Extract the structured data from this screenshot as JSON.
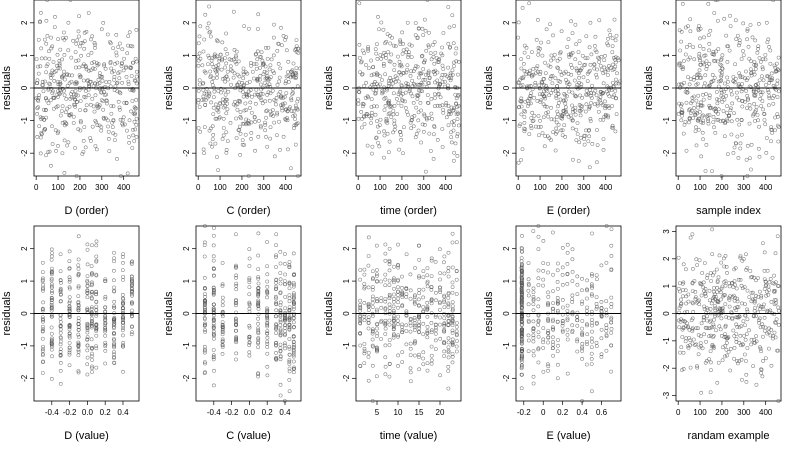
{
  "chart_data": [
    {
      "type": "scatter",
      "ylabel": "residuals",
      "xlabel": "D (order)",
      "xlim": [
        -10,
        470
      ],
      "ylim": [
        -2.7,
        2.7
      ],
      "xticks": [
        0,
        100,
        200,
        300,
        400
      ],
      "yticks": [
        -2,
        -1,
        0,
        1,
        2
      ],
      "refline": 0,
      "pattern": "order",
      "points": [
        [
          5,
          -1.5
        ],
        [
          20,
          -0.9
        ],
        [
          40,
          0.2
        ],
        [
          60,
          0.9
        ],
        [
          80,
          -0.3
        ],
        [
          100,
          1.5
        ],
        [
          120,
          -2.0
        ],
        [
          140,
          0.4
        ],
        [
          160,
          -0.8
        ],
        [
          180,
          1.1
        ],
        [
          200,
          0.0
        ],
        [
          220,
          -1.2
        ],
        [
          240,
          2.3
        ],
        [
          260,
          0.6
        ],
        [
          280,
          -0.5
        ],
        [
          300,
          1.8
        ],
        [
          320,
          -0.2
        ],
        [
          340,
          0.8
        ],
        [
          360,
          -1.6
        ],
        [
          380,
          0.3
        ],
        [
          400,
          -0.9
        ],
        [
          420,
          1.3
        ],
        [
          440,
          -0.4
        ],
        [
          460,
          0.5
        ]
      ]
    },
    {
      "type": "scatter",
      "ylabel": "residuals",
      "xlabel": "C (order)",
      "xlim": [
        -10,
        470
      ],
      "ylim": [
        -2.7,
        2.7
      ],
      "xticks": [
        0,
        100,
        200,
        300,
        400
      ],
      "yticks": [
        -2,
        -1,
        0,
        1,
        2
      ],
      "refline": 0,
      "pattern": "order",
      "points": [
        [
          10,
          0.9
        ],
        [
          30,
          -1.2
        ],
        [
          50,
          2.5
        ],
        [
          70,
          0.3
        ],
        [
          90,
          -0.6
        ],
        [
          110,
          1.4
        ],
        [
          130,
          -1.9
        ],
        [
          150,
          0.1
        ],
        [
          170,
          0.8
        ],
        [
          190,
          -0.4
        ],
        [
          210,
          1.9
        ],
        [
          230,
          -1.0
        ],
        [
          250,
          0.5
        ],
        [
          270,
          -0.2
        ],
        [
          290,
          1.1
        ],
        [
          310,
          -1.5
        ],
        [
          330,
          0.7
        ],
        [
          350,
          -2.1
        ],
        [
          370,
          0.2
        ],
        [
          390,
          1.6
        ],
        [
          410,
          -0.7
        ],
        [
          430,
          0.4
        ],
        [
          450,
          -1.1
        ],
        [
          465,
          0.6
        ]
      ]
    },
    {
      "type": "scatter",
      "ylabel": "residuals",
      "xlabel": "time (order)",
      "xlim": [
        -10,
        470
      ],
      "ylim": [
        -2.7,
        2.7
      ],
      "xticks": [
        0,
        100,
        200,
        300,
        400
      ],
      "yticks": [
        -2,
        -1,
        0,
        1,
        2
      ],
      "refline": 0,
      "pattern": "order",
      "points": [
        [
          5,
          2.6
        ],
        [
          25,
          -0.5
        ],
        [
          45,
          1.2
        ],
        [
          65,
          -1.8
        ],
        [
          85,
          0.4
        ],
        [
          105,
          0.9
        ],
        [
          125,
          -0.3
        ],
        [
          145,
          1.6
        ],
        [
          165,
          -1.1
        ],
        [
          185,
          0.2
        ],
        [
          205,
          -2.0
        ],
        [
          225,
          0.7
        ],
        [
          245,
          1.3
        ],
        [
          265,
          -0.6
        ],
        [
          285,
          0.1
        ],
        [
          305,
          2.1
        ],
        [
          325,
          -1.4
        ],
        [
          345,
          0.5
        ],
        [
          365,
          -0.2
        ],
        [
          385,
          1.0
        ],
        [
          405,
          -0.9
        ],
        [
          425,
          0.3
        ],
        [
          445,
          -1.7
        ],
        [
          460,
          0.8
        ]
      ]
    },
    {
      "type": "scatter",
      "ylabel": "residuals",
      "xlabel": "E (order)",
      "xlim": [
        -10,
        470
      ],
      "ylim": [
        -2.7,
        2.7
      ],
      "xticks": [
        0,
        100,
        200,
        300,
        400
      ],
      "yticks": [
        -2,
        -1,
        0,
        1,
        2
      ],
      "refline": 0,
      "pattern": "order",
      "points": [
        [
          10,
          -0.4
        ],
        [
          30,
          1.3
        ],
        [
          50,
          2.6
        ],
        [
          70,
          -1.0
        ],
        [
          90,
          0.5
        ],
        [
          110,
          -0.2
        ],
        [
          130,
          1.8
        ],
        [
          150,
          -1.6
        ],
        [
          170,
          0.3
        ],
        [
          190,
          0.9
        ],
        [
          210,
          -0.7
        ],
        [
          230,
          1.5
        ],
        [
          250,
          -2.2
        ],
        [
          270,
          0.1
        ],
        [
          290,
          0.6
        ],
        [
          310,
          -1.3
        ],
        [
          330,
          2.0
        ],
        [
          350,
          -0.5
        ],
        [
          370,
          0.8
        ],
        [
          390,
          -1.9
        ],
        [
          410,
          0.4
        ],
        [
          430,
          1.1
        ],
        [
          450,
          -0.8
        ],
        [
          465,
          0.2
        ]
      ]
    },
    {
      "type": "scatter",
      "ylabel": "residuals",
      "xlabel": "sample index",
      "xlim": [
        -10,
        470
      ],
      "ylim": [
        -2.7,
        2.7
      ],
      "xticks": [
        0,
        100,
        200,
        300,
        400
      ],
      "yticks": [
        -2,
        -1,
        0,
        1,
        2
      ],
      "refline": 0,
      "pattern": "order",
      "points": [
        [
          5,
          0.7
        ],
        [
          25,
          -1.4
        ],
        [
          45,
          1.9
        ],
        [
          65,
          -0.3
        ],
        [
          85,
          0.4
        ],
        [
          105,
          -2.1
        ],
        [
          125,
          1.0
        ],
        [
          145,
          -0.6
        ],
        [
          165,
          2.3
        ],
        [
          185,
          0.2
        ],
        [
          205,
          -1.0
        ],
        [
          225,
          0.8
        ],
        [
          245,
          -0.2
        ],
        [
          265,
          1.5
        ],
        [
          285,
          -1.7
        ],
        [
          305,
          0.3
        ],
        [
          325,
          0.9
        ],
        [
          345,
          -0.8
        ],
        [
          365,
          1.2
        ],
        [
          385,
          -0.4
        ],
        [
          405,
          2.0
        ],
        [
          425,
          -1.2
        ],
        [
          445,
          0.5
        ],
        [
          460,
          -0.1
        ]
      ]
    },
    {
      "type": "scatter",
      "ylabel": "residuals",
      "xlabel": "D (value)",
      "xlim": [
        -0.6,
        0.58
      ],
      "ylim": [
        -2.7,
        2.7
      ],
      "xticks": [
        -0.4,
        -0.2,
        0.0,
        0.2,
        0.4
      ],
      "yticks": [
        -2,
        -1,
        0,
        1,
        2
      ],
      "refline": 0,
      "pattern": "levels",
      "levels": [
        -0.5,
        -0.4,
        -0.3,
        -0.2,
        -0.1,
        0.0,
        0.05,
        0.1,
        0.2,
        0.3,
        0.4,
        0.5
      ],
      "points": [
        [
          -0.5,
          -1.5
        ],
        [
          -0.4,
          0.9
        ],
        [
          -0.3,
          -0.6
        ],
        [
          -0.2,
          1.4
        ],
        [
          -0.1,
          -1.0
        ],
        [
          0.0,
          0.5
        ],
        [
          0.05,
          -0.3
        ],
        [
          0.1,
          2.1
        ],
        [
          0.2,
          -0.9
        ],
        [
          0.3,
          0.7
        ],
        [
          0.4,
          -1.8
        ],
        [
          0.5,
          0.3
        ]
      ]
    },
    {
      "type": "scatter",
      "ylabel": "residuals",
      "xlabel": "C (value)",
      "xlim": [
        -0.6,
        0.58
      ],
      "ylim": [
        -2.7,
        2.7
      ],
      "xticks": [
        -0.4,
        -0.2,
        0.0,
        0.2,
        0.4
      ],
      "yticks": [
        -2,
        -1,
        0,
        1,
        2
      ],
      "refline": 0,
      "pattern": "levels",
      "levels": [
        -0.5,
        -0.4,
        -0.3,
        -0.15,
        0.0,
        0.1,
        0.2,
        0.3,
        0.35,
        0.4,
        0.45,
        0.5
      ],
      "points": [
        [
          -0.5,
          0.4
        ],
        [
          -0.4,
          2.4
        ],
        [
          -0.3,
          -0.8
        ],
        [
          -0.15,
          1.1
        ],
        [
          0.0,
          -1.3
        ],
        [
          0.1,
          0.6
        ],
        [
          0.2,
          -0.4
        ],
        [
          0.3,
          1.8
        ],
        [
          0.35,
          -2.2
        ],
        [
          0.4,
          0.9
        ],
        [
          0.45,
          -0.5
        ],
        [
          0.5,
          0.2
        ]
      ]
    },
    {
      "type": "scatter",
      "ylabel": "residuals",
      "xlabel": "time (value)",
      "xlim": [
        0,
        25
      ],
      "ylim": [
        -2.7,
        2.7
      ],
      "xticks": [
        5,
        10,
        15,
        20
      ],
      "yticks": [
        -2,
        -1,
        0,
        1,
        2
      ],
      "refline": 0,
      "pattern": "levels",
      "levels": [
        1,
        2,
        3,
        4,
        5,
        6,
        7,
        8,
        9,
        10,
        11,
        12,
        13,
        14,
        15,
        16,
        17,
        18,
        19,
        20,
        21,
        22,
        23,
        24
      ],
      "points": [
        [
          2,
          1.2
        ],
        [
          5,
          -0.7
        ],
        [
          8,
          2.0
        ],
        [
          11,
          -1.5
        ],
        [
          12,
          0.6
        ],
        [
          14,
          -0.2
        ],
        [
          17,
          1.4
        ],
        [
          19,
          -1.1
        ],
        [
          21,
          0.4
        ],
        [
          23,
          -0.6
        ],
        [
          24,
          2.2
        ]
      ]
    },
    {
      "type": "scatter",
      "ylabel": "residuals",
      "xlabel": "E (value)",
      "xlim": [
        -0.28,
        0.8
      ],
      "ylim": [
        -2.7,
        2.7
      ],
      "xticks": [
        -0.2,
        0.0,
        0.2,
        0.4,
        0.6
      ],
      "yticks": [
        -2,
        -1,
        0,
        1,
        2
      ],
      "refline": 0,
      "pattern": "levels-skew",
      "levels": [
        -0.22,
        -0.15,
        -0.1,
        -0.05,
        0.0,
        0.05,
        0.1,
        0.15,
        0.2,
        0.25,
        0.3,
        0.35,
        0.4,
        0.45,
        0.5,
        0.55,
        0.6,
        0.65,
        0.7
      ],
      "points": [
        [
          -0.22,
          1.5
        ],
        [
          -0.22,
          -1.6
        ],
        [
          -0.1,
          0.4
        ],
        [
          0.0,
          -0.8
        ],
        [
          0.1,
          2.5
        ],
        [
          0.2,
          -0.3
        ],
        [
          0.3,
          1.0
        ],
        [
          0.4,
          -1.4
        ],
        [
          0.5,
          0.6
        ],
        [
          0.6,
          -0.5
        ],
        [
          0.7,
          0.2
        ]
      ]
    },
    {
      "type": "scatter",
      "ylabel": "residuals",
      "xlabel": "randam example",
      "xlim": [
        -10,
        470
      ],
      "ylim": [
        -3.2,
        3.2
      ],
      "xticks": [
        0,
        100,
        200,
        300,
        400
      ],
      "yticks": [
        -3,
        -2,
        -1,
        0,
        1,
        2,
        3
      ],
      "refline": 0,
      "pattern": "order",
      "points": [
        [
          5,
          -0.5
        ],
        [
          25,
          1.8
        ],
        [
          45,
          -1.2
        ],
        [
          65,
          2.9
        ],
        [
          85,
          0.4
        ],
        [
          105,
          -2.9
        ],
        [
          125,
          0.9
        ],
        [
          145,
          -0.3
        ],
        [
          165,
          1.5
        ],
        [
          185,
          -1.8
        ],
        [
          205,
          0.2
        ],
        [
          225,
          -0.9
        ],
        [
          245,
          1.1
        ],
        [
          265,
          -0.4
        ],
        [
          285,
          2.1
        ],
        [
          305,
          -1.5
        ],
        [
          325,
          0.6
        ],
        [
          345,
          -0.1
        ],
        [
          365,
          1.3
        ],
        [
          385,
          -2.3
        ],
        [
          405,
          0.8
        ],
        [
          425,
          -0.6
        ],
        [
          445,
          2.2
        ],
        [
          460,
          0.1
        ]
      ]
    }
  ]
}
